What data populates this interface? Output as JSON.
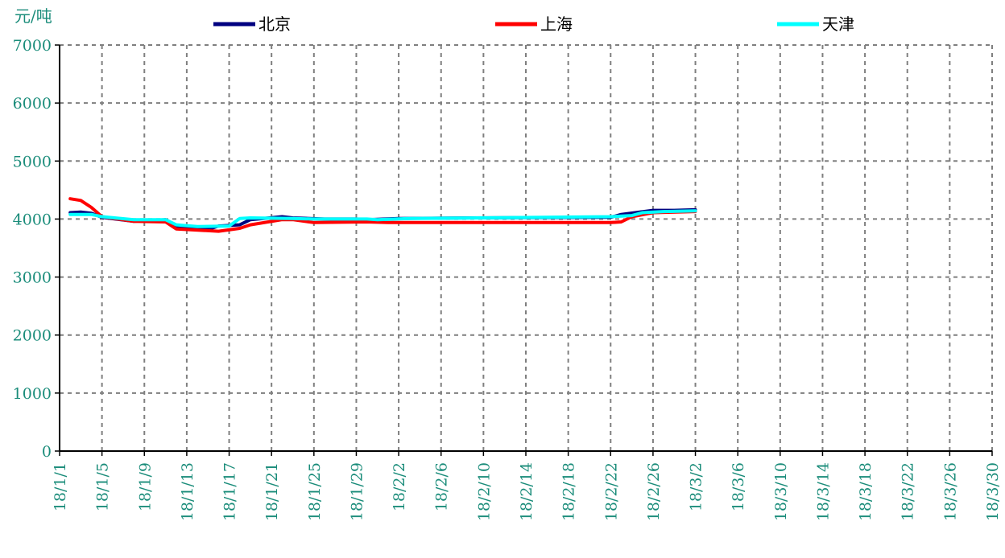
{
  "chart_data": {
    "type": "line",
    "ylabel": "元/吨",
    "ylim": [
      0,
      7000
    ],
    "yticks": [
      "0",
      "1000",
      "2000",
      "3000",
      "4000",
      "5000",
      "6000",
      "7000"
    ],
    "xlim": [
      "2018-01-01",
      "2018-03-30"
    ],
    "xticks": [
      "18/1/1",
      "18/1/5",
      "18/1/9",
      "18/1/13",
      "18/1/17",
      "18/1/21",
      "18/1/25",
      "18/1/29",
      "18/2/2",
      "18/2/6",
      "18/2/10",
      "18/2/14",
      "18/2/18",
      "18/2/22",
      "18/2/26",
      "18/3/2",
      "18/3/6",
      "18/3/10",
      "18/3/14",
      "18/3/18",
      "18/3/22",
      "18/3/26",
      "18/3/30"
    ],
    "grid": true,
    "legend_position": "top",
    "series": [
      {
        "name": "北京",
        "color": "#000080",
        "points": [
          [
            "2018-01-02",
            4110
          ],
          [
            "2018-01-03",
            4120
          ],
          [
            "2018-01-04",
            4100
          ],
          [
            "2018-01-05",
            4030
          ],
          [
            "2018-01-08",
            3960
          ],
          [
            "2018-01-11",
            3990
          ],
          [
            "2018-01-12",
            3850
          ],
          [
            "2018-01-15",
            3820
          ],
          [
            "2018-01-16",
            3880
          ],
          [
            "2018-01-18",
            3900
          ],
          [
            "2018-01-19",
            3990
          ],
          [
            "2018-01-22",
            4040
          ],
          [
            "2018-01-23",
            4020
          ],
          [
            "2018-01-26",
            4000
          ],
          [
            "2018-01-29",
            4000
          ],
          [
            "2018-01-30",
            3990
          ],
          [
            "2018-02-02",
            4010
          ],
          [
            "2018-02-09",
            4020
          ],
          [
            "2018-02-22",
            4030
          ],
          [
            "2018-02-23",
            4080
          ],
          [
            "2018-02-26",
            4150
          ],
          [
            "2018-02-28",
            4150
          ],
          [
            "2018-03-02",
            4160
          ]
        ]
      },
      {
        "name": "上海",
        "color": "#ff0000",
        "points": [
          [
            "2018-01-02",
            4350
          ],
          [
            "2018-01-03",
            4320
          ],
          [
            "2018-01-04",
            4200
          ],
          [
            "2018-01-05",
            4040
          ],
          [
            "2018-01-08",
            3960
          ],
          [
            "2018-01-11",
            3950
          ],
          [
            "2018-01-12",
            3830
          ],
          [
            "2018-01-16",
            3790
          ],
          [
            "2018-01-18",
            3840
          ],
          [
            "2018-01-19",
            3900
          ],
          [
            "2018-01-22",
            3990
          ],
          [
            "2018-01-23",
            3990
          ],
          [
            "2018-01-25",
            3940
          ],
          [
            "2018-01-30",
            3950
          ],
          [
            "2018-02-01",
            3940
          ],
          [
            "2018-02-22",
            3940
          ],
          [
            "2018-02-23",
            3950
          ],
          [
            "2018-02-24",
            4040
          ],
          [
            "2018-02-26",
            4110
          ],
          [
            "2018-03-02",
            4130
          ]
        ]
      },
      {
        "name": "天津",
        "color": "#00ffff",
        "points": [
          [
            "2018-01-02",
            4080
          ],
          [
            "2018-01-04",
            4080
          ],
          [
            "2018-01-05",
            4040
          ],
          [
            "2018-01-08",
            3990
          ],
          [
            "2018-01-11",
            3990
          ],
          [
            "2018-01-12",
            3900
          ],
          [
            "2018-01-14",
            3870
          ],
          [
            "2018-01-17",
            3880
          ],
          [
            "2018-01-18",
            4010
          ],
          [
            "2018-01-19",
            4020
          ],
          [
            "2018-01-23",
            4010
          ],
          [
            "2018-01-25",
            4000
          ],
          [
            "2018-01-30",
            4000
          ],
          [
            "2018-01-31",
            3990
          ],
          [
            "2018-02-03",
            4010
          ],
          [
            "2018-02-22",
            4040
          ],
          [
            "2018-02-24",
            4060
          ],
          [
            "2018-02-25",
            4110
          ],
          [
            "2018-02-27",
            4130
          ],
          [
            "2018-03-02",
            4140
          ]
        ]
      }
    ]
  }
}
